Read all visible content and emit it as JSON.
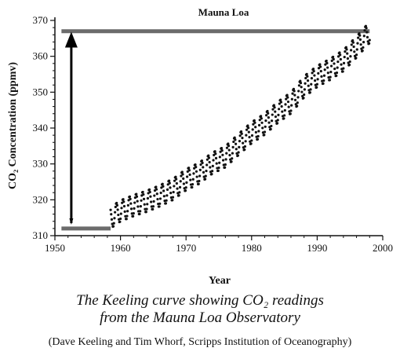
{
  "chart_data": {
    "type": "scatter",
    "title": "Mauna Loa",
    "xlabel": "Year",
    "ylabel": "CO₂ Concentration (ppmv)",
    "xlim": [
      1950,
      2000
    ],
    "ylim": [
      310,
      370
    ],
    "xticks": [
      1950,
      1960,
      1970,
      1980,
      1990,
      2000
    ],
    "yticks": [
      310,
      320,
      330,
      340,
      350,
      360,
      370
    ],
    "grid": false,
    "legend": "none",
    "series": [
      {
        "x": [
          1958.5,
          1960,
          1962,
          1964,
          1966,
          1968,
          1970,
          1972,
          1974,
          1976,
          1978,
          1980,
          1982,
          1984,
          1986,
          1988,
          1990,
          1992,
          1994,
          1996,
          1998
        ],
        "y": [
          315.0,
          316.9,
          318.4,
          319.6,
          321.1,
          322.9,
          325.6,
          327.4,
          330.2,
          332.0,
          335.4,
          338.7,
          341.1,
          344.4,
          347.0,
          351.5,
          354.4,
          356.4,
          358.8,
          362.6,
          366.7
        ],
        "seasonal_amplitude": 3,
        "color": "#111111"
      }
    ],
    "annotations": {
      "baseline": {
        "y": 312,
        "x_start": 1951,
        "x_end": 1958.5,
        "color": "#6b6b6b"
      },
      "top_line": {
        "y": 367,
        "x_start": 1951,
        "x_end": 1998,
        "color": "#6b6b6b"
      },
      "arrow": {
        "x": 1952.5,
        "y_from": 313.5,
        "y_to": 365.5,
        "color": "#000000"
      }
    }
  },
  "caption": {
    "line1": "The Keeling curve showing CO₂ readings",
    "line2": "from the Mauna Loa Observatory",
    "credit": "(Dave Keeling and Tim Whorf, Scripps Institution of Oceanography)"
  }
}
